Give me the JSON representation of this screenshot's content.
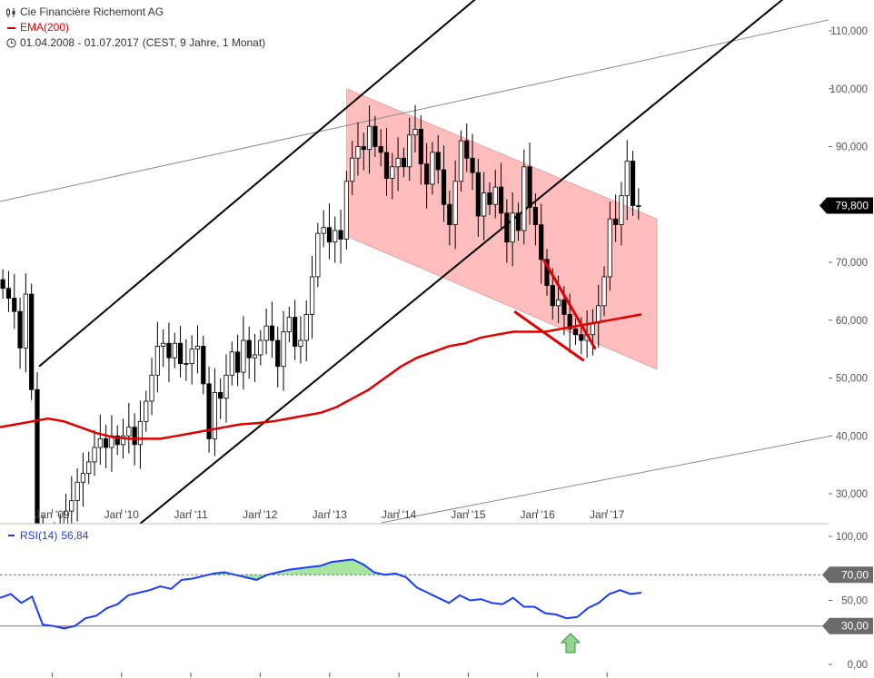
{
  "header": {
    "title": "Cie Financière Richemont AG",
    "ema_label": "EMA(200)",
    "date_range": "01.04.2008 - 01.07.2017",
    "period_info": "(CEST, 9 Jahre, 1 Monat)"
  },
  "rsi_legend": {
    "label": "RSI(14)",
    "value": "56,84"
  },
  "colors": {
    "candle": "#000000",
    "ema": "#e00000",
    "channel_fill": "#ffbdbd",
    "rsi": "#1a3cff",
    "rsi_overbought": "#a8e6a0",
    "rsi_oversold": "#f3a3a3",
    "price_tag": "#000000",
    "level_tag": "#6b6b6b",
    "arrow": "#8fd68f"
  },
  "icons": {
    "chart": "candles-icon",
    "clock": "clock-icon",
    "arrow": "up-arrow-icon"
  },
  "chart_data": [
    {
      "type": "candlestick",
      "title": "Cie Financière Richemont AG",
      "x_start": "2008-04-01",
      "x_end": "2017-07-01",
      "x_tick_labels": [
        "Jan '09",
        "Jan '10",
        "Jan '11",
        "Jan '12",
        "Jan '13",
        "Jan '14",
        "Jan '15",
        "Jan '16",
        "Jan '17"
      ],
      "y_tick_labels": [
        "30,000",
        "40,000",
        "50,000",
        "60,000",
        "70,000",
        "80,000",
        "90,000",
        "100,000",
        "110,000"
      ],
      "y_ticks": [
        30,
        40,
        50,
        60,
        70,
        80,
        90,
        100,
        110
      ],
      "ylim": [
        25.0,
        116.0
      ],
      "last_price": "79,800",
      "grid": false,
      "closes": [
        65.5,
        63.8,
        61.5,
        55.2,
        64.5,
        48.0,
        22.0,
        18.5,
        19.2,
        21.5,
        24.8,
        27.0,
        28.8,
        32.0,
        33.5,
        35.5,
        38.0,
        39.5,
        38.0,
        40.0,
        38.5,
        40.0,
        41.5,
        38.5,
        42.5,
        46.0,
        50.5,
        55.5,
        56.0,
        53.5,
        56.0,
        52.5,
        52.5,
        55.0,
        55.5,
        49.0,
        39.5,
        47.5,
        46.5,
        50.5,
        54.5,
        51.0,
        56.5,
        53.5,
        54.0,
        56.5,
        59.0,
        56.5,
        52.0,
        58.0,
        60.5,
        55.5,
        56.5,
        61.0,
        67.5,
        75.0,
        76.0,
        73.5,
        75.5,
        74.0,
        84.0,
        88.0,
        90.0,
        89.5,
        93.5,
        90.0,
        89.0,
        84.5,
        86.5,
        88.0,
        86.5,
        92.0,
        93.0,
        87.0,
        83.5,
        89.0,
        86.0,
        80.0,
        76.5,
        84.0,
        91.0,
        88.0,
        85.5,
        78.0,
        82.0,
        80.0,
        83.0,
        78.5,
        73.5,
        78.5,
        75.5,
        86.5,
        79.5,
        76.5,
        70.5,
        66.0,
        62.5,
        63.5,
        61.0,
        58.5,
        57.5,
        56.5,
        57.5,
        59.5,
        62.5,
        67.5,
        77.5,
        76.5,
        81.5,
        87.5,
        79.8,
        79.8
      ],
      "ema200": [
        41.5,
        42.0,
        42.5,
        43.0,
        42.5,
        41.5,
        40.5,
        39.8,
        39.5,
        39.5,
        39.5,
        40.0,
        40.5,
        41.0,
        41.5,
        42.0,
        42.2,
        42.5,
        43.0,
        43.5,
        44.0,
        45.0,
        46.5,
        48.0,
        50.0,
        52.0,
        53.5,
        54.5,
        55.5,
        56.0,
        57.0,
        57.5,
        58.0,
        58.0,
        58.0,
        58.5,
        59.0,
        59.5,
        60.0,
        60.5,
        61.0
      ],
      "trendlines": [
        {
          "name": "upper-channel",
          "color": "#000000"
        },
        {
          "name": "lower-channel",
          "color": "#000000"
        },
        {
          "name": "long-term-upper",
          "color": "#8c8c8c"
        },
        {
          "name": "long-term-lower",
          "color": "#8c8c8c"
        },
        {
          "name": "wedge",
          "color": "#e00000"
        }
      ],
      "channel": {
        "start_date": "2013-04-01",
        "end_date": "2017-07-01",
        "upper": [
          100.0,
          77.5
        ],
        "lower": [
          74.5,
          51.5
        ]
      }
    },
    {
      "type": "line",
      "series": [
        {
          "name": "RSI(14)",
          "values": [
            52,
            55,
            48,
            53,
            31,
            30,
            28,
            30,
            36,
            38,
            44,
            47,
            54,
            56,
            58,
            61,
            59,
            66,
            67,
            69,
            71,
            72,
            70,
            68,
            66,
            70,
            72,
            74,
            75,
            76,
            77,
            80,
            81,
            82,
            78,
            72,
            70,
            71,
            68,
            60,
            56,
            52,
            48,
            54,
            50,
            51,
            48,
            47,
            52,
            45,
            45,
            40,
            39,
            36,
            37,
            44,
            48,
            55,
            58,
            55,
            56
          ]
        }
      ],
      "ylim": [
        0,
        100
      ],
      "y_tick_labels": [
        "0,00",
        "50,00",
        "100,00"
      ],
      "y_ticks": [
        0,
        50,
        100
      ],
      "levels": [
        {
          "value": 70,
          "label": "70,00"
        },
        {
          "value": 30,
          "label": "30,00"
        }
      ],
      "last_value": "56,84"
    }
  ]
}
